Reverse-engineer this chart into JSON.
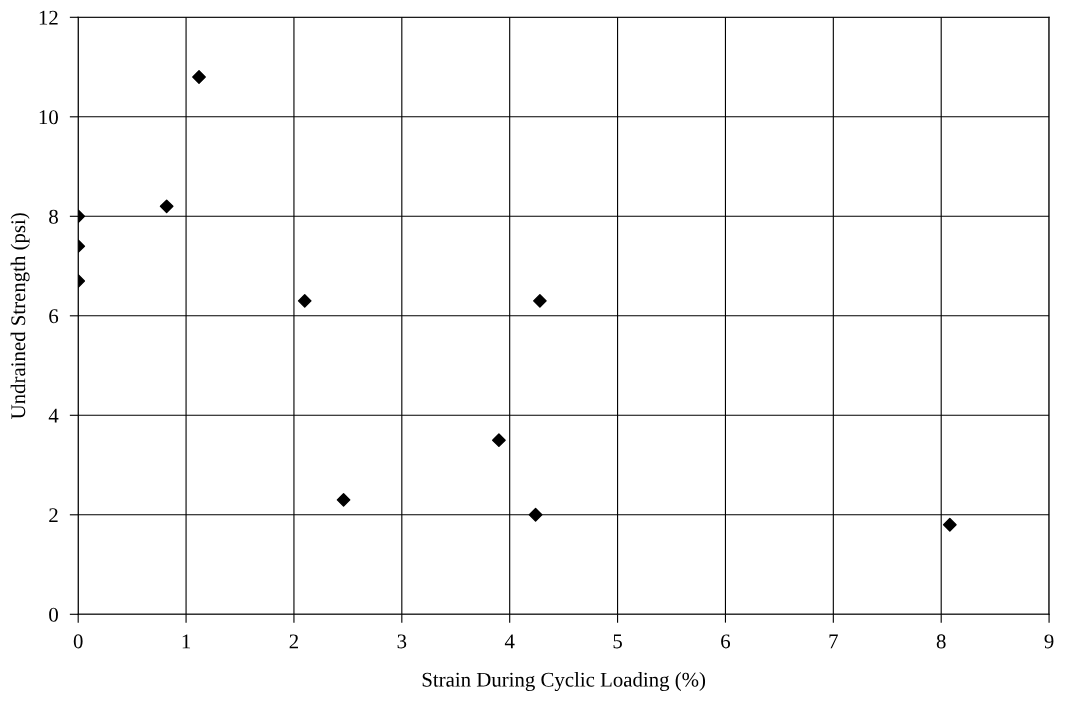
{
  "chart_data": {
    "type": "scatter",
    "xlabel": "Strain During Cyclic Loading (%)",
    "ylabel": "Undrained Strength (psi)",
    "x": [
      0,
      0,
      0,
      0.82,
      1.12,
      2.1,
      2.46,
      3.9,
      4.24,
      4.28,
      8.08
    ],
    "series": [
      {
        "color": "#000000",
        "values": [
          8.0,
          7.4,
          6.7,
          8.2,
          10.8,
          6.3,
          2.3,
          3.5,
          2.0,
          6.3,
          1.8
        ]
      }
    ],
    "xlim": [
      0,
      9
    ],
    "xticks": [
      0,
      1,
      2,
      3,
      4,
      5,
      6,
      7,
      8,
      9
    ],
    "ylim": [
      0,
      12
    ],
    "yticks": [
      0,
      2,
      4,
      6,
      8,
      10,
      12
    ],
    "grid": true,
    "marker": "diamond"
  }
}
